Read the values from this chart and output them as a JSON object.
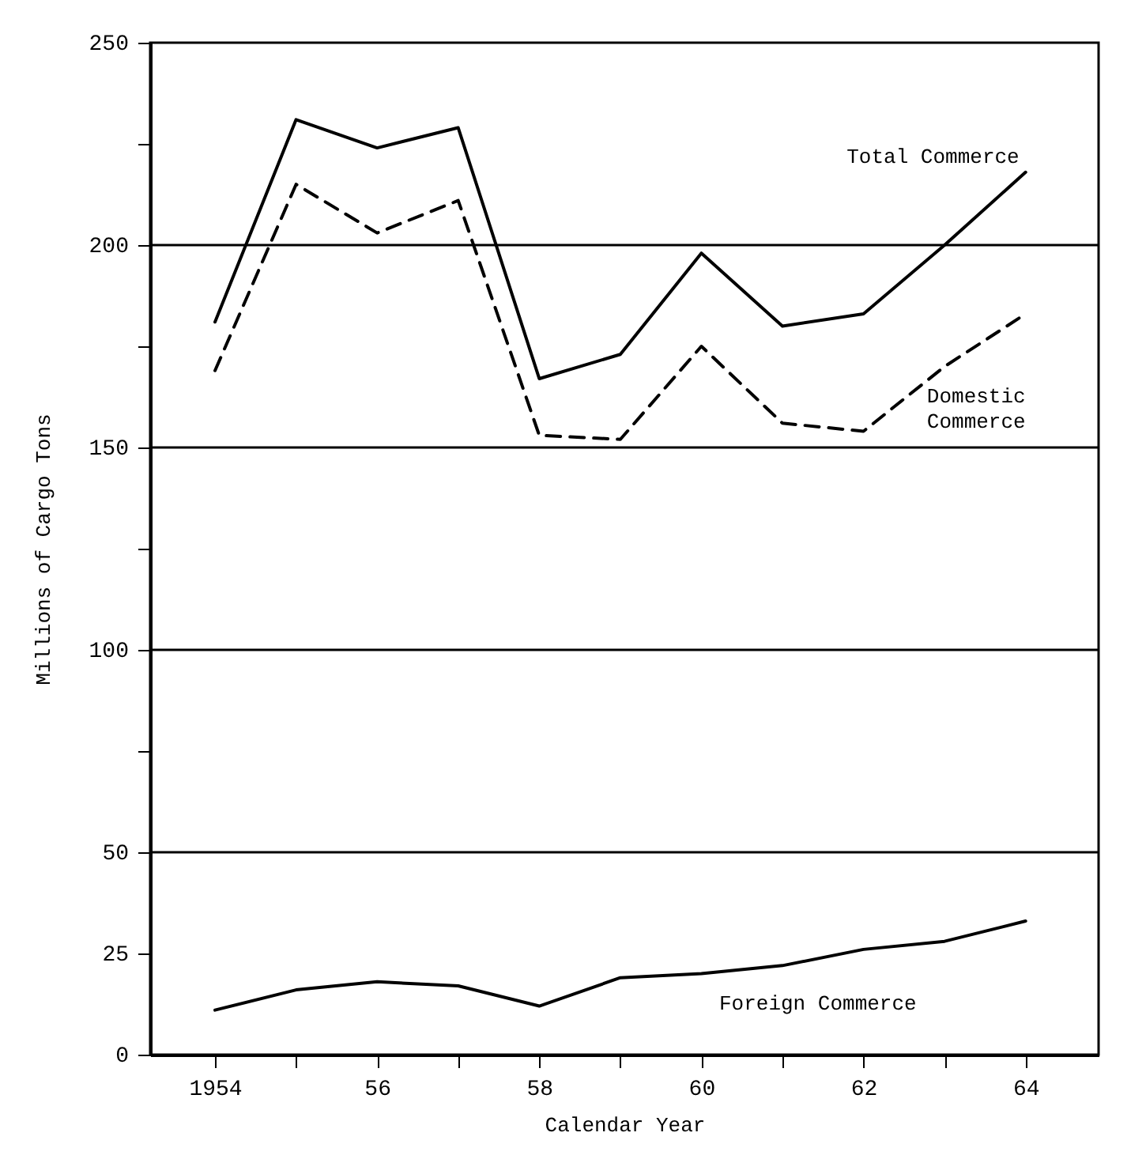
{
  "chart_data": {
    "type": "line",
    "xlabel": "Calendar Year",
    "ylabel": "Millions of Cargo Tons",
    "x": [
      1954,
      1955,
      1956,
      1957,
      1958,
      1959,
      1960,
      1961,
      1962,
      1963,
      1964
    ],
    "series": [
      {
        "name": "Total Commerce",
        "color": "#000000",
        "line_style": "solid",
        "values": [
          181,
          231,
          224,
          229,
          167,
          173,
          198,
          180,
          183,
          200,
          218
        ]
      },
      {
        "name": "Domestic Commerce",
        "color": "#000000",
        "line_style": "dashed",
        "values": [
          169,
          215,
          203,
          211,
          153,
          152,
          175,
          156,
          154,
          170,
          183
        ]
      },
      {
        "name": "Foreign Commerce",
        "color": "#000000",
        "line_style": "solid",
        "values": [
          11,
          16,
          18,
          17,
          12,
          19,
          20,
          22,
          26,
          28,
          33
        ]
      }
    ],
    "xlim": [
      1953.2,
      1964.9
    ],
    "xticks": [
      {
        "value": 1954,
        "label": "1954"
      },
      {
        "value": 1955,
        "label": null
      },
      {
        "value": 1956,
        "label": "56"
      },
      {
        "value": 1957,
        "label": null
      },
      {
        "value": 1958,
        "label": "58"
      },
      {
        "value": 1959,
        "label": null
      },
      {
        "value": 1960,
        "label": "60"
      },
      {
        "value": 1961,
        "label": null
      },
      {
        "value": 1962,
        "label": "62"
      },
      {
        "value": 1963,
        "label": null
      },
      {
        "value": 1964,
        "label": "64"
      }
    ],
    "ylim": [
      0,
      250
    ],
    "yticks": [
      0,
      25,
      50,
      {
        "value": 75,
        "label": null
      },
      100,
      {
        "value": 125,
        "label": null
      },
      150,
      {
        "value": 175,
        "label": null
      },
      200,
      {
        "value": 225,
        "label": null
      },
      250
    ],
    "ref_lines": [
      {
        "axis": "y",
        "value": 50
      },
      {
        "axis": "y",
        "value": 100
      },
      {
        "axis": "y",
        "value": 150
      },
      {
        "axis": "y",
        "value": 200
      }
    ],
    "grid": false,
    "marker": "none"
  }
}
